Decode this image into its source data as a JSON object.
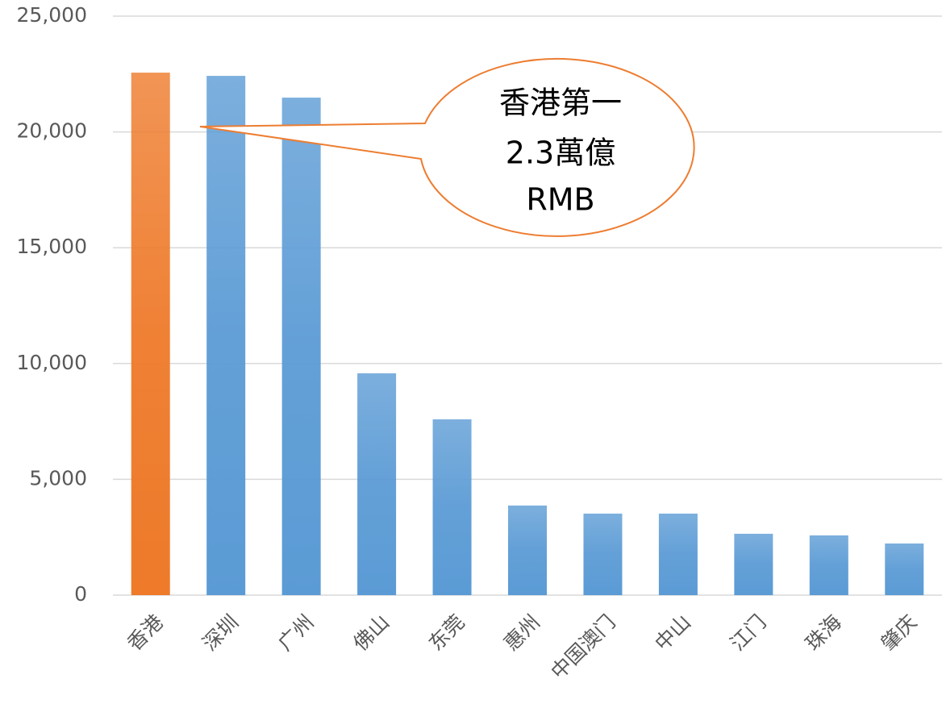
{
  "chart_data": {
    "type": "bar",
    "categories": [
      "香港",
      "深圳",
      "广州",
      "佛山",
      "东莞",
      "惠州",
      "中国澳门",
      "中山",
      "江门",
      "珠海",
      "肇庆"
    ],
    "values": [
      22560,
      22420,
      21480,
      9580,
      7590,
      3870,
      3520,
      3520,
      2650,
      2580,
      2230
    ],
    "colors": [
      "#ee7a2a",
      "#5b9bd5",
      "#5b9bd5",
      "#5b9bd5",
      "#5b9bd5",
      "#5b9bd5",
      "#5b9bd5",
      "#5b9bd5",
      "#5b9bd5",
      "#5b9bd5",
      "#5b9bd5"
    ],
    "ylim": [
      0,
      25000
    ],
    "yticks": [
      0,
      {
        "value": 5000,
        "label": "5,000"
      },
      {
        "value": 10000,
        "label": "10,000"
      },
      {
        "value": 15000,
        "label": "15,000"
      },
      {
        "value": 20000,
        "label": "20,000"
      },
      {
        "value": 25000,
        "label": "25,000"
      }
    ],
    "grid": true,
    "annotation": [
      "香港第一",
      "2.3萬億",
      "RMB"
    ],
    "annotation_color": "#ed7d31"
  }
}
